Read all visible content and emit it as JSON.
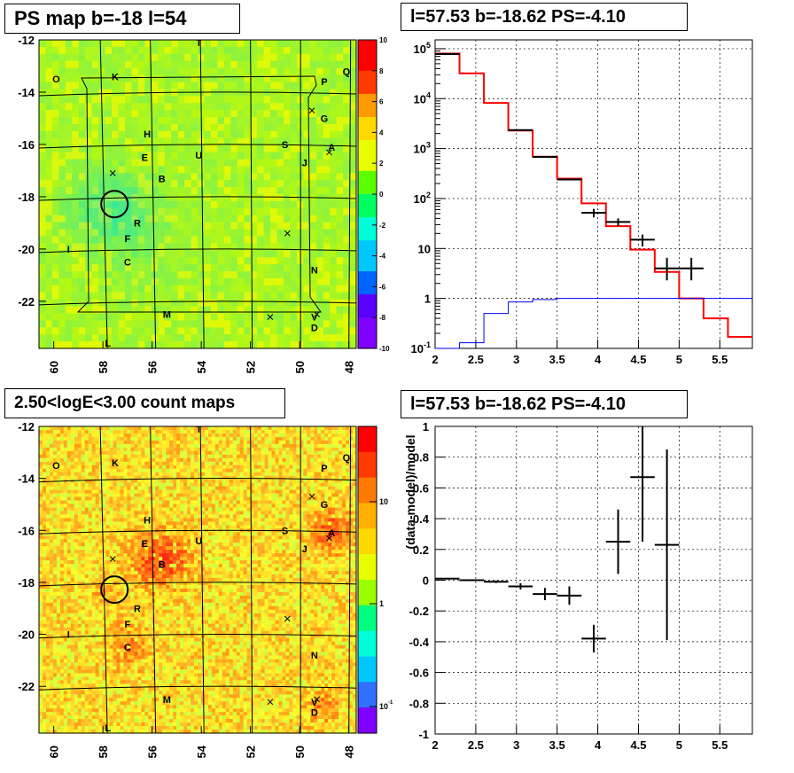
{
  "panels": {
    "ps_map": {
      "title": "PS map b=-18 l=54"
    },
    "spectrum": {
      "title": "l=57.53 b=-18.62 PS=-4.10"
    },
    "count_map": {
      "title": "2.50<logE<3.00 count maps"
    },
    "residual": {
      "title": "l=57.53 b=-18.62 PS=-4.10"
    }
  },
  "chart_data": [
    {
      "type": "heatmap",
      "title": "PS map b=-18 l=54",
      "x_ticks": [
        "60",
        "58",
        "56",
        "54",
        "52",
        "50",
        "48"
      ],
      "y_ticks": [
        "-12",
        "-14",
        "-16",
        "-18",
        "-20",
        "-22"
      ],
      "xlim": [
        60.6,
        47.7
      ],
      "ylim": [
        -23.8,
        -12
      ],
      "colorbar": {
        "ticks": [
          "10",
          "8",
          "6",
          "4",
          "2",
          "0",
          "-2",
          "-4",
          "-6",
          "-8",
          "-10"
        ],
        "range": [
          -10,
          10
        ]
      },
      "source_labels": [
        {
          "label": "O",
          "l": 59.9,
          "b": -13.5
        },
        {
          "label": "K",
          "l": 57.5,
          "b": -13.4
        },
        {
          "label": "T",
          "l": 54.1,
          "b": -12.1
        },
        {
          "label": "P",
          "l": 49.0,
          "b": -13.6
        },
        {
          "label": "Q",
          "l": 48.1,
          "b": -13.2
        },
        {
          "label": "G",
          "l": 49.0,
          "b": -15.0
        },
        {
          "label": "A",
          "l": 48.7,
          "b": -16.1
        },
        {
          "label": "H",
          "l": 56.2,
          "b": -15.6
        },
        {
          "label": "E",
          "l": 56.3,
          "b": -16.5
        },
        {
          "label": "U",
          "l": 54.1,
          "b": -16.4
        },
        {
          "label": "S",
          "l": 50.6,
          "b": -16.0
        },
        {
          "label": "J",
          "l": 49.8,
          "b": -16.7
        },
        {
          "label": "B",
          "l": 55.6,
          "b": -17.3
        },
        {
          "label": "R",
          "l": 56.6,
          "b": -19.0
        },
        {
          "label": "F",
          "l": 57.0,
          "b": -19.6
        },
        {
          "label": "I",
          "l": 59.4,
          "b": -20.0
        },
        {
          "label": "C",
          "l": 57.0,
          "b": -20.5
        },
        {
          "label": "N",
          "l": 49.4,
          "b": -20.8
        },
        {
          "label": "M",
          "l": 55.4,
          "b": -22.5
        },
        {
          "label": "V",
          "l": 49.4,
          "b": -22.6
        },
        {
          "label": "D",
          "l": 49.4,
          "b": -23.0
        },
        {
          "label": "L",
          "l": 57.8,
          "b": -23.6
        }
      ]
    },
    {
      "type": "line",
      "title": "l=57.53 b=-18.62 PS=-4.10",
      "x_ticks": [
        "2",
        "2.5",
        "3",
        "3.5",
        "4",
        "4.5",
        "5",
        "5.5"
      ],
      "y_ticks": [
        "10^5",
        "10^4",
        "10^3",
        "10^2",
        "10",
        "1",
        "10^-1"
      ],
      "y_scale": "log",
      "xlim": [
        2,
        5.9
      ],
      "ylim": [
        0.1,
        150000
      ],
      "grid": true,
      "series": [
        {
          "color": "#ff0000",
          "style": "step",
          "edges": [
            2.0,
            2.3,
            2.6,
            2.9,
            3.2,
            3.5,
            3.8,
            4.1,
            4.4,
            4.7,
            5.0,
            5.3,
            5.6,
            5.9
          ],
          "values": [
            80000,
            32000,
            8200,
            2300,
            690,
            250,
            80,
            28,
            9.5,
            3.4,
            1.0,
            0.4,
            0.17
          ]
        },
        {
          "color": "#0000ff",
          "style": "step",
          "edges": [
            2.0,
            2.3,
            2.6,
            2.9,
            3.2,
            3.5,
            3.8,
            4.1,
            4.4,
            4.7,
            5.0,
            5.3,
            5.6,
            5.9
          ],
          "values": [
            0.1,
            0.13,
            0.5,
            0.85,
            0.95,
            1.0,
            1.0,
            1.0,
            1.0,
            1.0,
            1.0,
            1.0,
            1.0
          ]
        },
        {
          "color": "#000000",
          "style": "errorbar",
          "points": [
            {
              "x": 2.15,
              "y": 78000,
              "xerr": 0.15,
              "ylo": 78000,
              "yhi": 78000
            },
            {
              "x": 3.05,
              "y": 2350,
              "xerr": 0.15,
              "ylo": 2350,
              "yhi": 2350
            },
            {
              "x": 3.35,
              "y": 680,
              "xerr": 0.15,
              "ylo": 680,
              "yhi": 680
            },
            {
              "x": 3.65,
              "y": 240,
              "xerr": 0.15,
              "ylo": 240,
              "yhi": 240
            },
            {
              "x": 3.95,
              "y": 52,
              "xerr": 0.15,
              "ylo": 42,
              "yhi": 62
            },
            {
              "x": 4.25,
              "y": 34,
              "xerr": 0.15,
              "ylo": 28,
              "yhi": 40
            },
            {
              "x": 4.55,
              "y": 15,
              "xerr": 0.15,
              "ylo": 11,
              "yhi": 19
            },
            {
              "x": 4.85,
              "y": 4,
              "xerr": 0.15,
              "ylo": 2.3,
              "yhi": 6.5
            },
            {
              "x": 5.15,
              "y": 4,
              "xerr": 0.15,
              "ylo": 2.3,
              "yhi": 6.5
            }
          ]
        }
      ]
    },
    {
      "type": "heatmap",
      "title": "2.50<logE<3.00 count maps",
      "x_ticks": [
        "60",
        "58",
        "56",
        "54",
        "52",
        "50",
        "48"
      ],
      "y_ticks": [
        "-12",
        "-14",
        "-16",
        "-18",
        "-20",
        "-22"
      ],
      "xlim": [
        60.6,
        47.7
      ],
      "ylim": [
        -23.8,
        -12
      ],
      "colorbar": {
        "scale": "log",
        "ticks": [
          "10",
          "1",
          "10^-1"
        ]
      }
    },
    {
      "type": "scatter",
      "title": "l=57.53 b=-18.62 PS=-4.10",
      "ylabel": "(data-model)/model",
      "x_ticks": [
        "2",
        "2.5",
        "3",
        "3.5",
        "4",
        "4.5",
        "5",
        "5.5"
      ],
      "y_ticks": [
        "1",
        "0.8",
        "0.6",
        "0.4",
        "0.2",
        "0",
        "-0.2",
        "-0.4",
        "-0.6",
        "-0.8",
        "-1"
      ],
      "xlim": [
        2,
        5.9
      ],
      "ylim": [
        -1,
        1
      ],
      "grid": true,
      "points": [
        {
          "x": 2.15,
          "y": 0.01,
          "xerr": 0.15,
          "yerr": 0.005
        },
        {
          "x": 2.45,
          "y": 0.0,
          "xerr": 0.15,
          "yerr": 0.005
        },
        {
          "x": 2.75,
          "y": -0.01,
          "xerr": 0.15,
          "yerr": 0.008
        },
        {
          "x": 3.05,
          "y": -0.04,
          "xerr": 0.15,
          "yerr": 0.02
        },
        {
          "x": 3.35,
          "y": -0.09,
          "xerr": 0.15,
          "yerr": 0.04
        },
        {
          "x": 3.65,
          "y": -0.1,
          "xerr": 0.15,
          "yerr": 0.06
        },
        {
          "x": 3.95,
          "y": -0.38,
          "xerr": 0.15,
          "yerr": 0.09
        },
        {
          "x": 4.25,
          "y": 0.25,
          "xerr": 0.15,
          "yerr": 0.21
        },
        {
          "x": 4.55,
          "y": 0.67,
          "xerr": 0.15,
          "yerr": 0.42
        },
        {
          "x": 4.85,
          "y": 0.23,
          "xerr": 0.15,
          "yerr": 0.62
        }
      ]
    }
  ]
}
